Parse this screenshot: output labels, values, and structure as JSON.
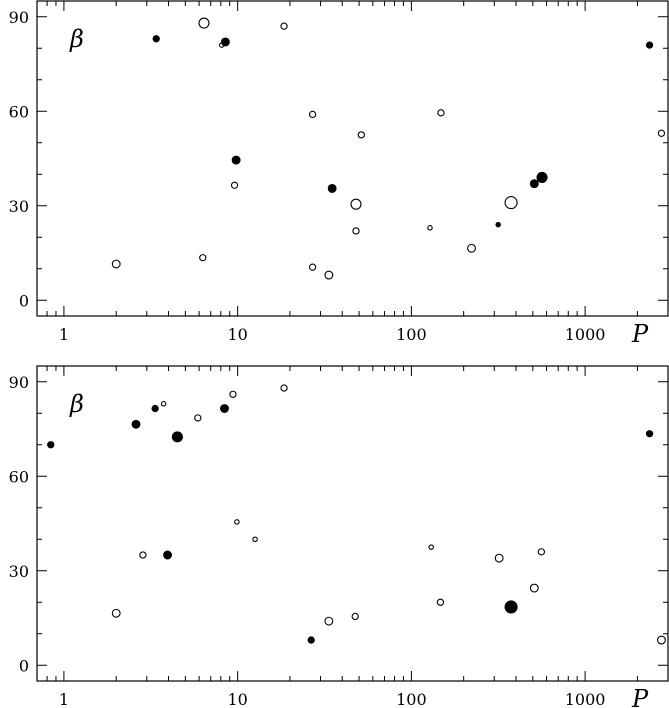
{
  "chart_data": [
    {
      "type": "scatter",
      "panel": "top",
      "x_scale": "log",
      "xlabel": "P",
      "ylabel": "β",
      "xlim": [
        0.7,
        3000
      ],
      "ylim": [
        -5,
        95
      ],
      "x_ticks": [
        1,
        10,
        100,
        1000
      ],
      "x_tick_labels": [
        "1",
        "10",
        "100",
        "1000"
      ],
      "y_ticks": [
        0,
        30,
        60,
        90
      ],
      "y_tick_labels": [
        "0",
        "30",
        "60",
        "90"
      ],
      "points": [
        {
          "x": 2.0,
          "y": 11.5,
          "size": "medium",
          "filled": false
        },
        {
          "x": 3.4,
          "y": 83,
          "size": "small",
          "filled": true
        },
        {
          "x": 6.3,
          "y": 13.5,
          "size": "small",
          "filled": false
        },
        {
          "x": 6.4,
          "y": 88,
          "size": "large",
          "filled": false
        },
        {
          "x": 8.1,
          "y": 81,
          "size": "tiny",
          "filled": false
        },
        {
          "x": 8.5,
          "y": 82,
          "size": "medium",
          "filled": true
        },
        {
          "x": 9.6,
          "y": 36.5,
          "size": "small",
          "filled": false
        },
        {
          "x": 9.8,
          "y": 44.5,
          "size": "medium",
          "filled": true
        },
        {
          "x": 18.5,
          "y": 87,
          "size": "small",
          "filled": false
        },
        {
          "x": 27,
          "y": 59,
          "size": "small",
          "filled": false
        },
        {
          "x": 27,
          "y": 10.5,
          "size": "small",
          "filled": false
        },
        {
          "x": 33.5,
          "y": 8,
          "size": "medium",
          "filled": false
        },
        {
          "x": 35,
          "y": 35.5,
          "size": "medium",
          "filled": true
        },
        {
          "x": 48,
          "y": 30.5,
          "size": "large",
          "filled": false
        },
        {
          "x": 48,
          "y": 22,
          "size": "small",
          "filled": false
        },
        {
          "x": 51.5,
          "y": 52.5,
          "size": "small",
          "filled": false
        },
        {
          "x": 128,
          "y": 23,
          "size": "tiny",
          "filled": false
        },
        {
          "x": 148,
          "y": 59.5,
          "size": "small",
          "filled": false
        },
        {
          "x": 222,
          "y": 16.5,
          "size": "medium",
          "filled": false
        },
        {
          "x": 316,
          "y": 24,
          "size": "tiny",
          "filled": true
        },
        {
          "x": 375,
          "y": 31,
          "size": "xlarge",
          "filled": false
        },
        {
          "x": 510,
          "y": 37,
          "size": "medium",
          "filled": true
        },
        {
          "x": 565,
          "y": 39,
          "size": "large",
          "filled": true
        },
        {
          "x": 2350,
          "y": 81,
          "size": "small",
          "filled": true
        },
        {
          "x": 2750,
          "y": 53,
          "size": "small",
          "filled": false
        }
      ]
    },
    {
      "type": "scatter",
      "panel": "bottom",
      "x_scale": "log",
      "xlabel": "P",
      "ylabel": "β",
      "xlim": [
        0.7,
        3000
      ],
      "ylim": [
        -5,
        95
      ],
      "x_ticks": [
        1,
        10,
        100,
        1000
      ],
      "x_tick_labels": [
        "1",
        "10",
        "100",
        "1000"
      ],
      "y_ticks": [
        0,
        30,
        60,
        90
      ],
      "y_tick_labels": [
        "0",
        "30",
        "60",
        "90"
      ],
      "points": [
        {
          "x": 0.84,
          "y": 70,
          "size": "small",
          "filled": true
        },
        {
          "x": 2.0,
          "y": 16.5,
          "size": "medium",
          "filled": false
        },
        {
          "x": 2.6,
          "y": 76.5,
          "size": "medium",
          "filled": true
        },
        {
          "x": 2.85,
          "y": 35,
          "size": "small",
          "filled": false
        },
        {
          "x": 3.35,
          "y": 81.5,
          "size": "small",
          "filled": true
        },
        {
          "x": 3.75,
          "y": 83,
          "size": "tiny",
          "filled": false
        },
        {
          "x": 3.95,
          "y": 35,
          "size": "medium",
          "filled": true
        },
        {
          "x": 4.5,
          "y": 72.5,
          "size": "large",
          "filled": true
        },
        {
          "x": 5.9,
          "y": 78.5,
          "size": "small",
          "filled": false
        },
        {
          "x": 8.4,
          "y": 81.5,
          "size": "medium",
          "filled": true
        },
        {
          "x": 9.4,
          "y": 86,
          "size": "small",
          "filled": false
        },
        {
          "x": 9.9,
          "y": 45.5,
          "size": "tiny",
          "filled": false
        },
        {
          "x": 12.6,
          "y": 40,
          "size": "tiny",
          "filled": false
        },
        {
          "x": 18.5,
          "y": 88,
          "size": "small",
          "filled": false
        },
        {
          "x": 26.5,
          "y": 8,
          "size": "small",
          "filled": true
        },
        {
          "x": 33.5,
          "y": 14,
          "size": "medium",
          "filled": false
        },
        {
          "x": 47.5,
          "y": 15.5,
          "size": "small",
          "filled": false
        },
        {
          "x": 130,
          "y": 37.5,
          "size": "tiny",
          "filled": false
        },
        {
          "x": 147,
          "y": 20,
          "size": "small",
          "filled": false
        },
        {
          "x": 320,
          "y": 34,
          "size": "medium",
          "filled": false
        },
        {
          "x": 375,
          "y": 18.5,
          "size": "xlarge",
          "filled": true
        },
        {
          "x": 510,
          "y": 24.5,
          "size": "medium",
          "filled": false
        },
        {
          "x": 560,
          "y": 36,
          "size": "small",
          "filled": false
        },
        {
          "x": 2350,
          "y": 73.5,
          "size": "small",
          "filled": true
        },
        {
          "x": 2750,
          "y": 8,
          "size": "medium",
          "filled": false
        }
      ]
    }
  ]
}
